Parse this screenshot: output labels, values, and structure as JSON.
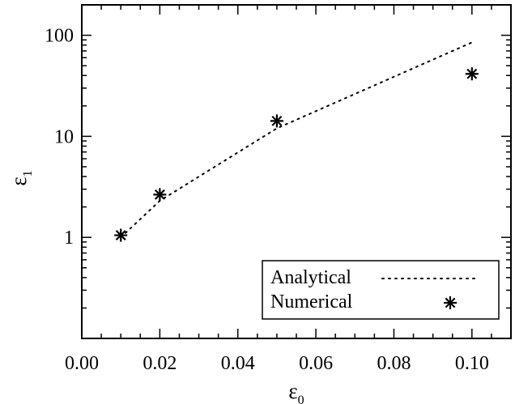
{
  "chart_data": {
    "type": "scatter",
    "xlabel": "ε",
    "xlabel_sub": "0",
    "ylabel": "ε",
    "ylabel_sub": "1",
    "xlim": [
      0.0,
      0.11
    ],
    "ylim": [
      0.1,
      200
    ],
    "y_scale": "log",
    "x_ticks": [
      0.0,
      0.02,
      0.04,
      0.06,
      0.08,
      0.1
    ],
    "x_tick_labels": [
      "0.00",
      "0.02",
      "0.04",
      "0.06",
      "0.08",
      "0.10"
    ],
    "y_ticks": [
      1,
      10,
      100
    ],
    "y_tick_labels": [
      "1",
      "10",
      "100"
    ],
    "grid": false,
    "legend_position": "bottom-right",
    "series": [
      {
        "name": "Analytical",
        "style": "dotted-line",
        "x": [
          0.01,
          0.02,
          0.05,
          0.1
        ],
        "y": [
          1.0,
          2.3,
          12,
          85
        ]
      },
      {
        "name": "Numerical",
        "style": "asterisk-marker",
        "x": [
          0.01,
          0.02,
          0.05,
          0.1
        ],
        "y": [
          1.05,
          2.65,
          14.2,
          41.5
        ]
      }
    ]
  }
}
